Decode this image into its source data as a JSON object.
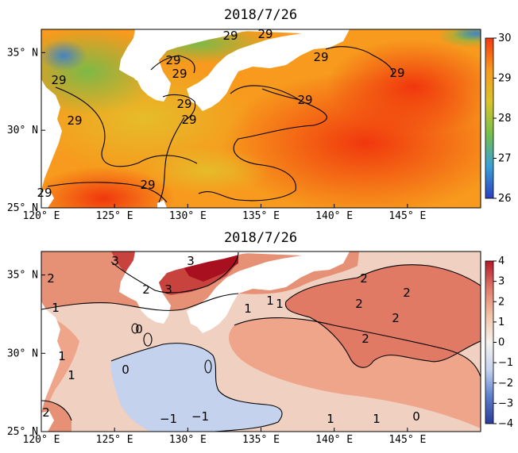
{
  "chart_data": [
    {
      "type": "heatmap",
      "title": "2018/7/26",
      "xlabel": "",
      "ylabel": "",
      "xlim": [
        120,
        150
      ],
      "ylim": [
        25,
        36.5
      ],
      "x_ticks": [
        "120°E",
        "125°E",
        "130°E",
        "135°E",
        "140°E",
        "145°E"
      ],
      "y_ticks": [
        "25°N",
        "30°N",
        "35°N"
      ],
      "colorbar": {
        "min": 26,
        "max": 30,
        "ticks": [
          "26",
          "27",
          "28",
          "29",
          "30"
        ],
        "colors": [
          "#2c3fbf",
          "#3aa0d8",
          "#74c04a",
          "#d9c32c",
          "#f79a1d",
          "#f03a10"
        ]
      },
      "contour_labels": [
        "29",
        "29",
        "29",
        "29",
        "29",
        "29",
        "29",
        "29",
        "29",
        "29",
        "29",
        "29",
        "29"
      ]
    },
    {
      "type": "heatmap",
      "title": "2018/7/26",
      "xlabel": "",
      "ylabel": "",
      "xlim": [
        120,
        150
      ],
      "ylim": [
        25,
        36.5
      ],
      "x_ticks": [
        "120°E",
        "125°E",
        "130°E",
        "135°E",
        "140°E",
        "145°E"
      ],
      "y_ticks": [
        "25°N",
        "30°N",
        "35°N"
      ],
      "colorbar": {
        "min": -4,
        "max": 4,
        "ticks": [
          "4",
          "3",
          "2",
          "1",
          "0",
          "−1",
          "−2",
          "−3",
          "−4"
        ],
        "colors": [
          "#2a3a9a",
          "#5d7ecd",
          "#c6d4ef",
          "#f6f2ee",
          "#f1c3a6",
          "#e0796a",
          "#b4192a"
        ]
      },
      "contour_labels": [
        "3",
        "3",
        "3",
        "2",
        "2",
        "1",
        "1",
        "2",
        "2",
        "2",
        "2",
        "1",
        "1",
        "1",
        "0",
        "0",
        "1",
        "2",
        "−1",
        "−1",
        "1",
        "1",
        "0",
        "2"
      ]
    }
  ]
}
